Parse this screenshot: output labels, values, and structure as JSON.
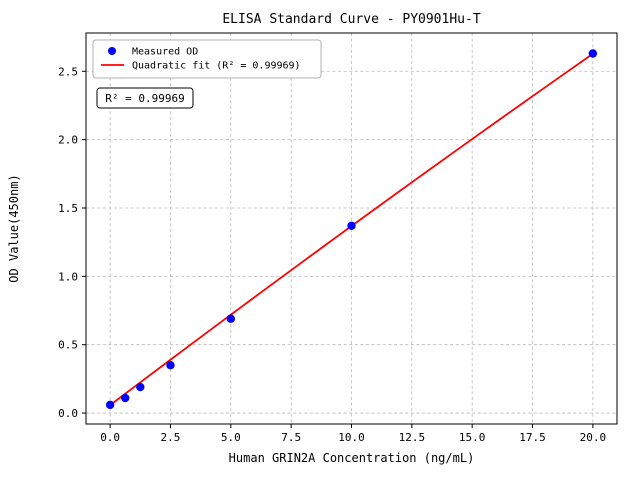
{
  "figure": {
    "title": "ELISA Standard Curve - PY0901Hu-T",
    "background_color": "#ffffff"
  },
  "chart_data": {
    "type": "scatter",
    "title": "ELISA Standard Curve - PY0901Hu-T",
    "xlabel": "Human GRIN2A Concentration (ng/mL)",
    "ylabel": "OD Value(450nm)",
    "xlim": [
      -1,
      21
    ],
    "ylim": [
      -0.08,
      2.78
    ],
    "xticks": [
      0,
      2.5,
      5,
      7.5,
      10,
      12.5,
      15,
      17.5,
      20
    ],
    "xtick_labels": [
      "0.0",
      "2.5",
      "5.0",
      "7.5",
      "10.0",
      "12.5",
      "15.0",
      "17.5",
      "20.0"
    ],
    "yticks": [
      0,
      0.5,
      1,
      1.5,
      2,
      2.5
    ],
    "ytick_labels": [
      "0.0",
      "0.5",
      "1.0",
      "1.5",
      "2.0",
      "2.5"
    ],
    "grid": true,
    "grid_style": "dashed",
    "grid_color": "#b8b8b8",
    "legend_position": "upper-left",
    "annotation": "R² = 0.99969",
    "r_squared": 0.99969,
    "series": [
      {
        "name": "Measured OD",
        "plot_type": "scatter",
        "color": "#0000ff",
        "x": [
          0,
          0.625,
          1.25,
          2.5,
          5,
          10,
          20
        ],
        "y": [
          0.06,
          0.11,
          0.19,
          0.35,
          0.69,
          1.37,
          2.63
        ]
      },
      {
        "name": "Quadratic fit (R² = 0.99969)",
        "plot_type": "line",
        "color": "#ff0000",
        "fit_coeffs": {
          "intercept": 0.058,
          "linear": 0.1335,
          "quadratic": -0.00025
        },
        "x_range": [
          0,
          20
        ]
      }
    ]
  }
}
